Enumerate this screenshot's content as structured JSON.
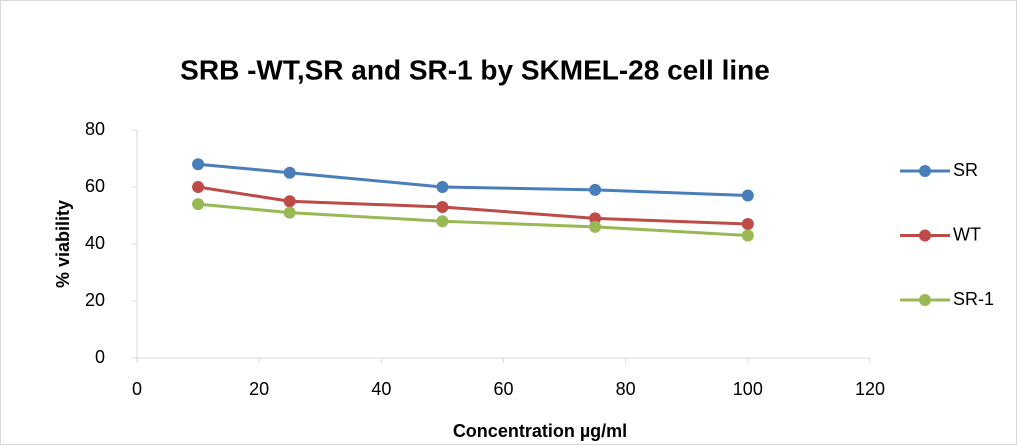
{
  "chart_data": {
    "type": "line",
    "title": "SRB -WT,SR and SR-1 by SKMEL-28 cell line",
    "x_label": "Concentration µg/ml",
    "y_label": "% viability",
    "x": [
      10,
      25,
      50,
      75,
      100
    ],
    "series": [
      {
        "name": "SR",
        "color": "#4a7ebb",
        "values": [
          68,
          65,
          60,
          59,
          57
        ]
      },
      {
        "name": "WT",
        "color": "#be4b48",
        "values": [
          60,
          55,
          53,
          49,
          47
        ]
      },
      {
        "name": "SR-1",
        "color": "#98b954",
        "values": [
          54,
          51,
          48,
          46,
          43
        ]
      }
    ],
    "xlim": [
      0,
      120
    ],
    "xticks": [
      0,
      20,
      40,
      60,
      80,
      100,
      120
    ],
    "ylim": [
      0,
      80
    ],
    "yticks": [
      0,
      20,
      40,
      60,
      80
    ],
    "grid": false,
    "legend": "right"
  }
}
